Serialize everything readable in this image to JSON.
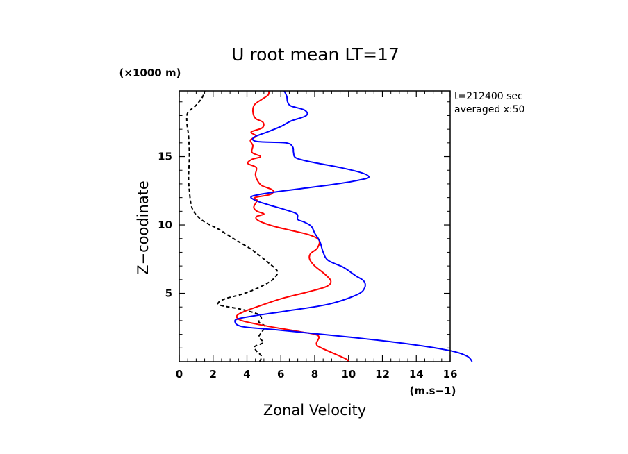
{
  "chart_data": {
    "type": "line",
    "title": "U root mean LT=17",
    "xlabel": "Zonal Velocity",
    "ylabel": "Z−coodinate",
    "x_unit": "(m.s−1)",
    "y_unit": "(×1000 m)",
    "annotation_line1": "t=212400 sec",
    "annotation_line2": "averaged  x:50",
    "xlim": [
      0,
      16
    ],
    "ylim": [
      0,
      19.8
    ],
    "x_ticks": [
      0,
      2,
      4,
      6,
      8,
      10,
      12,
      14,
      16
    ],
    "x_tick_labels": [
      "0",
      "2",
      "4",
      "6",
      "8",
      "10",
      "12",
      "14",
      "16"
    ],
    "y_ticks": [
      5,
      10,
      15
    ],
    "y_tick_labels": [
      "5",
      "10",
      "15"
    ],
    "grid": false,
    "series": [
      {
        "color": "#000000",
        "dash": true,
        "points": [
          [
            4.75,
            0.0
          ],
          [
            4.85,
            0.4
          ],
          [
            4.55,
            0.8
          ],
          [
            4.45,
            1.1
          ],
          [
            4.95,
            1.4
          ],
          [
            4.7,
            1.8
          ],
          [
            4.9,
            2.2
          ],
          [
            5.05,
            2.6
          ],
          [
            4.7,
            2.9
          ],
          [
            4.85,
            3.2
          ],
          [
            4.6,
            3.5
          ],
          [
            3.6,
            3.85
          ],
          [
            2.5,
            4.1
          ],
          [
            2.3,
            4.3
          ],
          [
            2.7,
            4.6
          ],
          [
            3.6,
            4.9
          ],
          [
            4.3,
            5.2
          ],
          [
            5.15,
            5.7
          ],
          [
            5.6,
            6.1
          ],
          [
            5.8,
            6.6
          ],
          [
            5.3,
            7.2
          ],
          [
            4.8,
            7.7
          ],
          [
            4.15,
            8.3
          ],
          [
            3.2,
            9.0
          ],
          [
            2.3,
            9.7
          ],
          [
            1.4,
            10.3
          ],
          [
            0.9,
            10.9
          ],
          [
            0.7,
            11.5
          ],
          [
            0.6,
            12.5
          ],
          [
            0.55,
            13.5
          ],
          [
            0.6,
            15.0
          ],
          [
            0.55,
            16.5
          ],
          [
            0.45,
            17.5
          ],
          [
            0.5,
            18.2
          ],
          [
            0.95,
            18.7
          ],
          [
            1.35,
            19.3
          ],
          [
            1.5,
            19.8
          ]
        ]
      },
      {
        "color": "#ff0000",
        "dash": false,
        "points": [
          [
            9.9,
            0.0
          ],
          [
            9.85,
            0.2
          ],
          [
            8.4,
            1.0
          ],
          [
            8.1,
            1.3
          ],
          [
            8.2,
            1.9
          ],
          [
            7.1,
            2.2
          ],
          [
            5.2,
            2.6
          ],
          [
            3.7,
            3.0
          ],
          [
            3.4,
            3.35
          ],
          [
            3.9,
            3.7
          ],
          [
            4.8,
            4.1
          ],
          [
            6.0,
            4.6
          ],
          [
            7.6,
            5.1
          ],
          [
            8.7,
            5.5
          ],
          [
            8.95,
            5.9
          ],
          [
            8.6,
            6.4
          ],
          [
            8.0,
            7.0
          ],
          [
            7.7,
            7.5
          ],
          [
            7.75,
            7.9
          ],
          [
            8.15,
            8.3
          ],
          [
            8.25,
            8.9
          ],
          [
            7.6,
            9.3
          ],
          [
            6.6,
            9.6
          ],
          [
            5.6,
            9.9
          ],
          [
            4.7,
            10.3
          ],
          [
            4.55,
            10.6
          ],
          [
            5.0,
            10.8
          ],
          [
            4.6,
            11.0
          ],
          [
            4.4,
            11.3
          ],
          [
            4.6,
            11.8
          ],
          [
            4.45,
            12.0
          ],
          [
            5.3,
            12.2
          ],
          [
            5.55,
            12.4
          ],
          [
            5.45,
            12.6
          ],
          [
            4.85,
            12.9
          ],
          [
            4.6,
            13.3
          ],
          [
            4.5,
            13.7
          ],
          [
            4.55,
            14.2
          ],
          [
            4.05,
            14.5
          ],
          [
            4.3,
            14.8
          ],
          [
            4.8,
            15.0
          ],
          [
            4.3,
            15.3
          ],
          [
            4.35,
            15.8
          ],
          [
            4.2,
            16.2
          ],
          [
            4.55,
            16.5
          ],
          [
            4.25,
            16.8
          ],
          [
            4.9,
            17.1
          ],
          [
            4.95,
            17.5
          ],
          [
            4.5,
            17.8
          ],
          [
            4.35,
            18.3
          ],
          [
            4.45,
            18.8
          ],
          [
            4.9,
            19.2
          ],
          [
            5.25,
            19.5
          ],
          [
            5.3,
            19.8
          ]
        ]
      },
      {
        "color": "#0000ff",
        "dash": false,
        "points": [
          [
            17.3,
            0.0
          ],
          [
            17.0,
            0.4
          ],
          [
            16.0,
            0.8
          ],
          [
            13.5,
            1.3
          ],
          [
            10.0,
            1.8
          ],
          [
            6.0,
            2.3
          ],
          [
            3.8,
            2.55
          ],
          [
            3.3,
            2.9
          ],
          [
            3.7,
            3.2
          ],
          [
            6.3,
            3.7
          ],
          [
            8.8,
            4.2
          ],
          [
            10.5,
            4.9
          ],
          [
            10.95,
            5.4
          ],
          [
            10.9,
            5.9
          ],
          [
            10.4,
            6.3
          ],
          [
            9.7,
            6.9
          ],
          [
            8.8,
            7.4
          ],
          [
            8.5,
            8.0
          ],
          [
            8.3,
            8.8
          ],
          [
            8.0,
            9.4
          ],
          [
            7.8,
            9.9
          ],
          [
            7.4,
            10.2
          ],
          [
            7.0,
            10.4
          ],
          [
            6.95,
            10.8
          ],
          [
            6.3,
            11.1
          ],
          [
            5.2,
            11.5
          ],
          [
            4.5,
            11.8
          ],
          [
            4.3,
            12.1
          ],
          [
            5.6,
            12.4
          ],
          [
            7.5,
            12.7
          ],
          [
            9.3,
            13.0
          ],
          [
            10.7,
            13.3
          ],
          [
            11.2,
            13.5
          ],
          [
            10.8,
            13.8
          ],
          [
            9.5,
            14.2
          ],
          [
            7.8,
            14.6
          ],
          [
            6.9,
            14.9
          ],
          [
            6.75,
            15.3
          ],
          [
            6.7,
            15.7
          ],
          [
            6.3,
            16.0
          ],
          [
            4.6,
            16.1
          ],
          [
            4.4,
            16.4
          ],
          [
            5.2,
            16.8
          ],
          [
            6.0,
            17.2
          ],
          [
            6.6,
            17.6
          ],
          [
            7.5,
            18.0
          ],
          [
            7.4,
            18.4
          ],
          [
            6.6,
            18.7
          ],
          [
            6.4,
            19.0
          ],
          [
            6.35,
            19.4
          ],
          [
            6.2,
            19.8
          ]
        ]
      }
    ]
  }
}
